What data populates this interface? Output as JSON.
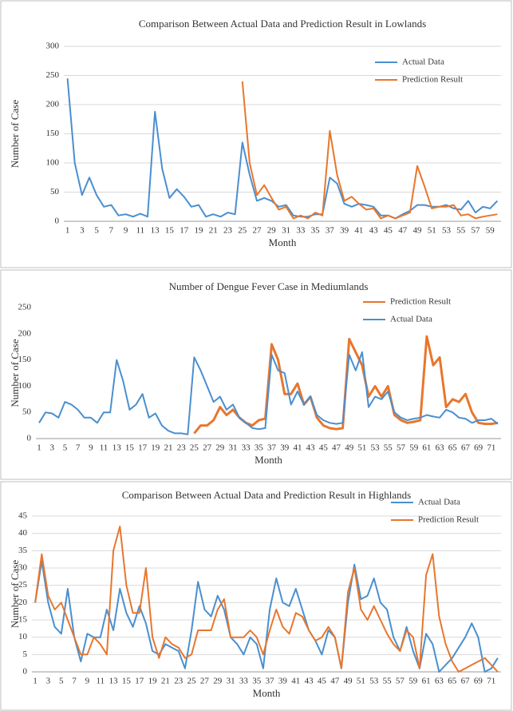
{
  "chart_data": [
    {
      "type": "line",
      "title": "Comparison Between Actual Data and Prediction Result in Lowlands",
      "x_label": "Month",
      "y_label": "Number of Case",
      "categories": [
        1,
        null,
        3,
        null,
        5,
        null,
        7,
        null,
        9,
        null,
        11,
        null,
        13,
        null,
        15,
        null,
        17,
        null,
        19,
        null,
        21,
        null,
        23,
        null,
        25,
        null,
        27,
        null,
        29,
        null,
        31,
        null,
        33,
        null,
        35,
        null,
        37,
        null,
        39,
        null,
        41,
        null,
        43,
        null,
        45,
        null,
        47,
        null,
        49,
        null,
        51,
        null,
        53,
        null,
        55,
        null,
        57,
        null,
        59,
        null
      ],
      "series": [
        {
          "name": "Actual Data",
          "color": "#4a8fcf",
          "values": [
            245,
            100,
            45,
            75,
            45,
            25,
            28,
            10,
            12,
            8,
            13,
            8,
            188,
            90,
            40,
            55,
            42,
            25,
            28,
            8,
            12,
            8,
            15,
            12,
            135,
            80,
            35,
            40,
            35,
            25,
            28,
            10,
            8,
            8,
            12,
            12,
            75,
            65,
            30,
            25,
            30,
            28,
            25,
            10,
            10,
            5,
            12,
            18,
            28,
            28,
            25,
            25,
            28,
            22,
            20,
            35,
            15,
            25,
            22,
            35
          ]
        },
        {
          "name": "Prediction Result",
          "color": "#e8762d",
          "values": [
            null,
            null,
            null,
            null,
            null,
            null,
            null,
            null,
            null,
            null,
            null,
            null,
            null,
            null,
            null,
            null,
            null,
            null,
            null,
            null,
            null,
            null,
            null,
            null,
            240,
            100,
            45,
            62,
            40,
            20,
            25,
            5,
            10,
            5,
            15,
            10,
            155,
            80,
            35,
            42,
            30,
            20,
            22,
            5,
            10,
            5,
            10,
            15,
            95,
            60,
            22,
            25,
            25,
            28,
            10,
            12,
            5,
            8,
            10,
            12
          ]
        }
      ],
      "ylim": [
        0,
        300
      ],
      "yticks": [
        0,
        50,
        100,
        150,
        200,
        250,
        300
      ],
      "grid": true,
      "legend": "upper right"
    },
    {
      "type": "line",
      "title": "Number of Dengue Fever Case in Mediumlands",
      "x_label": "Month",
      "y_label": "Number of Case",
      "categories": [
        1,
        null,
        3,
        null,
        5,
        null,
        7,
        null,
        9,
        null,
        11,
        null,
        13,
        null,
        15,
        null,
        17,
        null,
        19,
        null,
        21,
        null,
        23,
        null,
        25,
        null,
        27,
        null,
        29,
        null,
        31,
        null,
        33,
        null,
        35,
        null,
        37,
        null,
        39,
        null,
        41,
        null,
        43,
        null,
        45,
        null,
        47,
        null,
        49,
        null,
        51,
        null,
        53,
        null,
        55,
        null,
        57,
        null,
        59,
        null,
        61,
        null,
        63,
        null,
        65,
        null,
        67,
        null,
        69,
        null,
        71,
        null
      ],
      "series": [
        {
          "name": "Prediction Result",
          "color": "#e8762d",
          "values": [
            null,
            null,
            null,
            null,
            null,
            null,
            null,
            null,
            null,
            null,
            null,
            null,
            null,
            null,
            null,
            null,
            null,
            null,
            null,
            null,
            null,
            null,
            null,
            null,
            10,
            25,
            25,
            35,
            60,
            45,
            55,
            40,
            30,
            25,
            35,
            38,
            180,
            150,
            85,
            85,
            105,
            65,
            80,
            40,
            25,
            20,
            18,
            20,
            190,
            165,
            140,
            80,
            100,
            80,
            100,
            45,
            35,
            30,
            32,
            35,
            195,
            140,
            155,
            60,
            75,
            70,
            85,
            50,
            30,
            28,
            28,
            30
          ]
        },
        {
          "name": "Actual Data",
          "color": "#4a8fcf",
          "values": [
            30,
            50,
            48,
            40,
            70,
            65,
            55,
            40,
            40,
            30,
            50,
            50,
            150,
            110,
            55,
            65,
            85,
            40,
            48,
            25,
            15,
            10,
            10,
            8,
            155,
            130,
            100,
            70,
            80,
            55,
            65,
            40,
            30,
            20,
            18,
            20,
            160,
            130,
            125,
            65,
            90,
            65,
            80,
            45,
            35,
            30,
            28,
            30,
            160,
            130,
            165,
            60,
            80,
            75,
            90,
            50,
            40,
            35,
            38,
            40,
            45,
            42,
            40,
            55,
            50,
            40,
            38,
            30,
            35,
            35,
            38,
            28
          ]
        }
      ],
      "ylim": [
        0,
        250
      ],
      "yticks": [
        0,
        50,
        100,
        150,
        200,
        250
      ],
      "grid": false,
      "legend": "upper right"
    },
    {
      "type": "line",
      "title": "Comparison Between Actual Data and Prediction Result in Highlands",
      "x_label": "Month",
      "y_label": "Number of Case",
      "categories": [
        1,
        null,
        3,
        null,
        5,
        null,
        7,
        null,
        9,
        null,
        11,
        null,
        13,
        null,
        15,
        null,
        17,
        null,
        19,
        null,
        21,
        null,
        23,
        null,
        25,
        null,
        27,
        null,
        29,
        null,
        31,
        null,
        33,
        null,
        35,
        null,
        37,
        null,
        39,
        null,
        41,
        null,
        43,
        null,
        45,
        null,
        47,
        null,
        49,
        null,
        51,
        null,
        53,
        null,
        55,
        null,
        57,
        null,
        59,
        null,
        61,
        null,
        63,
        null,
        65,
        null,
        67,
        null,
        69,
        null,
        71,
        null
      ],
      "series": [
        {
          "name": "Actual Data",
          "color": "#4a8fcf",
          "values": [
            20,
            32,
            20,
            13,
            11,
            24,
            10,
            3,
            11,
            10,
            10,
            18,
            12,
            24,
            17,
            13,
            19,
            14,
            6,
            5,
            8,
            7,
            6,
            1,
            12,
            26,
            18,
            16,
            22,
            18,
            10,
            8,
            5,
            10,
            8,
            1,
            18,
            27,
            20,
            19,
            24,
            18,
            12,
            9,
            5,
            12,
            10,
            1,
            20,
            31,
            21,
            22,
            27,
            20,
            18,
            10,
            6,
            13,
            6,
            1,
            11,
            8,
            0,
            2,
            4,
            7,
            10,
            14,
            10,
            0,
            1,
            4
          ]
        },
        {
          "name": "Prediction Result",
          "color": "#e8762d",
          "values": [
            20,
            34,
            22,
            18,
            20,
            15,
            10,
            5,
            5,
            10,
            8,
            5,
            35,
            42,
            25,
            17,
            17,
            30,
            10,
            4,
            10,
            8,
            7,
            4,
            5,
            12,
            12,
            12,
            18,
            21,
            10,
            10,
            10,
            12,
            10,
            5,
            12,
            18,
            13,
            11,
            17,
            16,
            12,
            9,
            10,
            13,
            10,
            1,
            23,
            30,
            18,
            15,
            19,
            15,
            11,
            8,
            6,
            12,
            10,
            1,
            28,
            34,
            16,
            8,
            3,
            0,
            1,
            2,
            3,
            4,
            2,
            0
          ]
        }
      ],
      "ylim": [
        0,
        45
      ],
      "yticks": [
        0,
        5,
        10,
        15,
        20,
        25,
        30,
        35,
        40,
        45
      ],
      "grid": true,
      "legend": "upper right"
    }
  ]
}
